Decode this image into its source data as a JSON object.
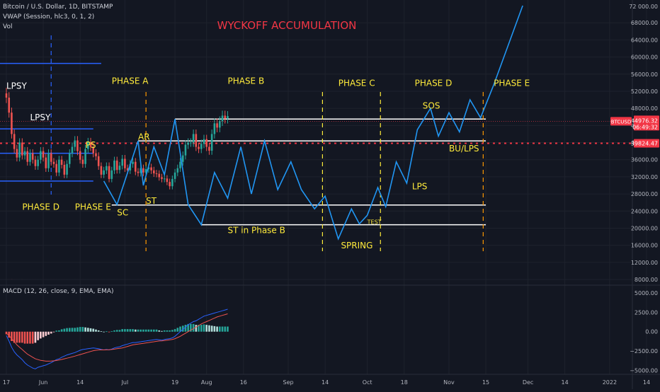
{
  "header": {
    "symbol_line": "Bitcoin / U.S. Dollar, 1D, BITSTAMP",
    "vwap_line": "VWAP (Session, hlc3, 0, 1, 2)",
    "vol_line": "Vol",
    "macd_line": "MACD (12, 26, close, 9, EMA, EMA)"
  },
  "chart_data": {
    "type": "line",
    "title": "WYCKOFF ACCUMULATION",
    "price_axis": {
      "min": 8000,
      "max": 72000,
      "ticks": [
        8000,
        12000,
        16000,
        20000,
        24000,
        28000,
        32000,
        36000,
        40000,
        44000,
        48000,
        52000,
        56000,
        60000,
        64000,
        68000
      ],
      "tick_labels": [
        "8000.00",
        "12000.00",
        "16000.00",
        "20000.00",
        "24000.00",
        "28000.00",
        "32000.00",
        "36000.00",
        "40000.00",
        "44000.00",
        "48000.00",
        "52000.00",
        "56000.00",
        "60000.00",
        "64000.00",
        "68000.00"
      ],
      "top_label": "72 000.00",
      "current_price": {
        "symbol": "BTCUSD",
        "price": "44976.32",
        "countdown": "06:49:32",
        "value": 44976.32
      },
      "dotted_level": {
        "label": "39824.47",
        "value": 39824.47
      }
    },
    "macd_axis": {
      "min": -5500,
      "max": 6000,
      "ticks": [
        5000,
        2500,
        0,
        -2500,
        -5000
      ],
      "tick_labels": [
        "5000.00",
        "2500.00",
        "0.00",
        "−2500.00",
        "−5000.00"
      ]
    },
    "time_axis": {
      "labels": [
        "17",
        "Jun",
        "14",
        "Jul",
        "19",
        "Aug",
        "16",
        "Sep",
        "14",
        "Oct",
        "18",
        "Nov",
        "15",
        "Dec",
        "14",
        "2022",
        "14"
      ],
      "label_days": [
        0,
        14,
        28,
        45,
        64,
        76,
        90,
        107,
        121,
        137,
        151,
        168,
        182,
        198,
        212,
        229,
        243
      ]
    },
    "horizontal_levels": [
      {
        "name": "phase-b-top",
        "value": 45500,
        "x1": 64,
        "x2": 182
      },
      {
        "name": "ar-level",
        "value": 40400,
        "x1": 50,
        "x2": 182
      },
      {
        "name": "sc-level",
        "value": 25400,
        "x1": 40,
        "x2": 182
      },
      {
        "name": "st-phase-b-level",
        "value": 20800,
        "x1": 74,
        "x2": 182
      }
    ],
    "left_levels": [
      {
        "value": 58500,
        "x1": -5,
        "x2": 36
      },
      {
        "value": 43200,
        "x1": -5,
        "x2": 33
      },
      {
        "value": 37500,
        "x1": -5,
        "x2": 33
      },
      {
        "value": 31000,
        "x1": -5,
        "x2": 33
      }
    ],
    "vertical_markers": [
      {
        "day": 17,
        "color": "#2962ff"
      },
      {
        "day": 53,
        "color": "#ff9800"
      },
      {
        "day": 120,
        "color": "#ffeb3b"
      },
      {
        "day": 142,
        "color": "#ffeb3b"
      },
      {
        "day": 181,
        "color": "#ff9800"
      }
    ],
    "projection_path": [
      [
        37,
        31000
      ],
      [
        42,
        25500
      ],
      [
        50,
        40400
      ],
      [
        52,
        30000
      ],
      [
        56,
        39000
      ],
      [
        60,
        32500
      ],
      [
        64,
        45500
      ],
      [
        69,
        25500
      ],
      [
        74,
        20800
      ],
      [
        79,
        33000
      ],
      [
        84,
        27000
      ],
      [
        89,
        39000
      ],
      [
        93,
        28000
      ],
      [
        98,
        40400
      ],
      [
        103,
        29000
      ],
      [
        108,
        35500
      ],
      [
        112,
        29000
      ],
      [
        117,
        24500
      ],
      [
        121,
        27500
      ],
      [
        126,
        17500
      ],
      [
        131,
        24500
      ],
      [
        134,
        21000
      ],
      [
        137,
        23000
      ],
      [
        141,
        29500
      ],
      [
        144,
        25000
      ],
      [
        148,
        35500
      ],
      [
        152,
        30500
      ],
      [
        156,
        43000
      ],
      [
        161,
        48000
      ],
      [
        164,
        41500
      ],
      [
        168,
        47000
      ],
      [
        172,
        42500
      ],
      [
        176,
        50000
      ],
      [
        180,
        45800
      ],
      [
        185,
        53500
      ],
      [
        196,
        72000
      ]
    ],
    "annotations": [
      {
        "text": "LPSY",
        "day": 0,
        "price": 52600,
        "color": "#ffffff"
      },
      {
        "text": "LPSY",
        "day": 9,
        "price": 45200,
        "color": "#ffffff"
      },
      {
        "text": "PHASE A",
        "day": 40,
        "price": 53700,
        "color": "#ffeb3b"
      },
      {
        "text": "PHASE B",
        "day": 84,
        "price": 53700,
        "color": "#ffeb3b"
      },
      {
        "text": "PHASE C",
        "day": 126,
        "price": 53200,
        "color": "#ffeb3b"
      },
      {
        "text": "PHASE D",
        "day": 155,
        "price": 53200,
        "color": "#ffeb3b"
      },
      {
        "text": "PHASE E",
        "day": 185,
        "price": 53200,
        "color": "#ffeb3b"
      },
      {
        "text": "SOS",
        "day": 158,
        "price": 47900,
        "color": "#ffeb3b"
      },
      {
        "text": "PS",
        "day": 30,
        "price": 38800,
        "color": "#ffeb3b"
      },
      {
        "text": "AR",
        "day": 50,
        "price": 40700,
        "color": "#ffeb3b"
      },
      {
        "text": "BU/LPS",
        "day": 168,
        "price": 37900,
        "color": "#ffeb3b"
      },
      {
        "text": "LPS",
        "day": 154,
        "price": 29100,
        "color": "#ffeb3b"
      },
      {
        "text": "ST",
        "day": 53,
        "price": 25700,
        "color": "#ffeb3b"
      },
      {
        "text": "SC",
        "day": 42,
        "price": 23000,
        "color": "#ffeb3b"
      },
      {
        "text": "PHASE D",
        "day": 6,
        "price": 24300,
        "color": "#ffeb3b"
      },
      {
        "text": "PHASE E",
        "day": 26,
        "price": 24300,
        "color": "#ffeb3b"
      },
      {
        "text": "ST in Phase B",
        "day": 84,
        "price": 18800,
        "color": "#ffeb3b"
      },
      {
        "text": "TEST",
        "day": 137,
        "price": 21000,
        "color": "#ffeb3b"
      },
      {
        "text": "SPRING",
        "day": 127,
        "price": 15300,
        "color": "#ffeb3b"
      }
    ],
    "price_series": {
      "start_day": 0,
      "closes": [
        50500,
        47000,
        42000,
        38500,
        36500,
        40000,
        37000,
        38000,
        35500,
        37500,
        36000,
        34500,
        36000,
        38000,
        36500,
        34000,
        37500,
        35500,
        35000,
        33000,
        36000,
        34800,
        32500,
        35000,
        37500,
        39000,
        40500,
        38000,
        36000,
        35000,
        38500,
        40100,
        39000,
        37500,
        36800,
        34500,
        32500,
        33500,
        34500,
        31500,
        33500,
        35800,
        33600,
        34600,
        36200,
        34000,
        33500,
        35000,
        35500,
        33200,
        32900,
        34000,
        33000,
        33800,
        34200,
        33500,
        32800,
        32700,
        31900,
        31500,
        31600,
        30800,
        29800,
        31500,
        33000,
        34000,
        35500,
        37000,
        39500,
        40000,
        40000,
        42000,
        39000,
        38500,
        39700,
        40800,
        39000,
        38100,
        42000,
        44500,
        43500,
        45000,
        46300,
        45600,
        46200
      ]
    },
    "volume_axis": {
      "max": 60000
    },
    "volume": [
      20,
      15,
      55,
      20,
      14,
      12,
      30,
      11,
      9,
      10,
      8,
      9,
      9,
      12,
      10,
      8,
      11,
      14,
      10,
      8,
      9,
      7,
      8,
      10,
      9,
      8,
      12,
      9,
      7,
      8,
      10,
      9,
      7,
      8,
      6,
      8,
      10,
      9,
      7,
      13,
      11,
      14,
      9,
      8,
      10,
      7,
      8,
      9,
      6,
      7,
      8,
      9,
      7,
      8,
      11,
      8,
      7,
      6,
      7,
      8,
      9,
      10,
      7,
      11,
      12,
      14,
      10,
      9,
      8,
      9,
      10,
      8,
      11,
      10,
      9,
      8,
      12,
      9,
      7,
      8,
      9,
      10,
      8,
      9,
      7
    ],
    "macd_series": [
      {
        "name": "MACD",
        "color": "#2962ff",
        "values": [
          -500,
          -1200,
          -2000,
          -2600,
          -3000,
          -3300,
          -3600,
          -4000,
          -4300,
          -4500,
          -4700,
          -4800,
          -4600,
          -4500,
          -4400,
          -4300,
          -4150,
          -4000,
          -3800,
          -3600,
          -3500,
          -3300,
          -3150,
          -3000,
          -2900,
          -2800,
          -2700,
          -2550,
          -2400,
          -2300,
          -2250,
          -2200,
          -2150,
          -2100,
          -2150,
          -2200,
          -2300,
          -2350,
          -2300,
          -2350,
          -2250,
          -2100,
          -2000,
          -1950,
          -1800,
          -1700,
          -1600,
          -1500,
          -1400,
          -1400,
          -1350,
          -1300,
          -1250,
          -1200,
          -1150,
          -1100,
          -1050,
          -1000,
          -1050,
          -1100,
          -1000,
          -950,
          -900,
          -800,
          -600,
          -300,
          0,
          300,
          600,
          900,
          1100,
          1300,
          1400,
          1600,
          1800,
          2000,
          2100,
          2200,
          2300,
          2400,
          2500,
          2600,
          2700,
          2800,
          2900
        ]
      },
      {
        "name": "Signal",
        "color": "#ef5350",
        "values": [
          -200,
          -500,
          -900,
          -1300,
          -1700,
          -2000,
          -2300,
          -2600,
          -2900,
          -3100,
          -3300,
          -3500,
          -3600,
          -3700,
          -3750,
          -3800,
          -3800,
          -3780,
          -3760,
          -3720,
          -3650,
          -3580,
          -3500,
          -3420,
          -3340,
          -3250,
          -3150,
          -3050,
          -2950,
          -2850,
          -2750,
          -2650,
          -2550,
          -2450,
          -2400,
          -2350,
          -2350,
          -2350,
          -2340,
          -2330,
          -2300,
          -2250,
          -2200,
          -2150,
          -2100,
          -2000,
          -1900,
          -1800,
          -1700,
          -1650,
          -1600,
          -1550,
          -1500,
          -1450,
          -1400,
          -1350,
          -1300,
          -1250,
          -1200,
          -1180,
          -1150,
          -1100,
          -1050,
          -1000,
          -900,
          -750,
          -600,
          -400,
          -200,
          0,
          200,
          400,
          600,
          800,
          1000,
          1150,
          1300,
          1450,
          1600,
          1750,
          1900,
          2000,
          2100,
          2200,
          2300
        ]
      }
    ]
  }
}
